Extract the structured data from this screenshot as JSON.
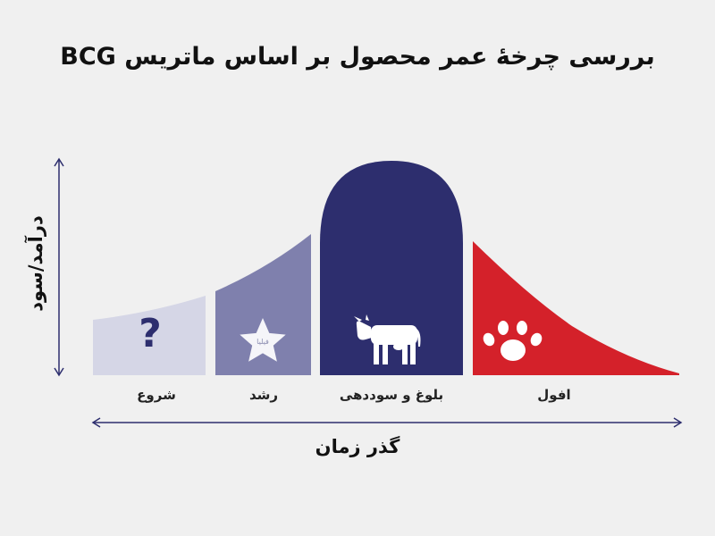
{
  "title": "بررسی چرخهٔ عمر محصول بر اساس ماتریس BCG",
  "axes": {
    "x_label": "گذر زمان",
    "y_label": "درآمد/سود"
  },
  "stages": [
    {
      "label": "شروع",
      "icon": "question-mark-icon",
      "color": "#d5d6e6",
      "symbol": "?"
    },
    {
      "label": "رشد",
      "icon": "star-icon",
      "color": "#7f80ad"
    },
    {
      "label": "بلوغ و سوددهی",
      "icon": "cow-icon",
      "color": "#2d2e6e"
    },
    {
      "label": "افول",
      "icon": "paw-icon",
      "color": "#d4212a"
    }
  ],
  "watermark": "فیلیا",
  "colors": {
    "axis": "#2d2e6e",
    "text": "#111111"
  }
}
